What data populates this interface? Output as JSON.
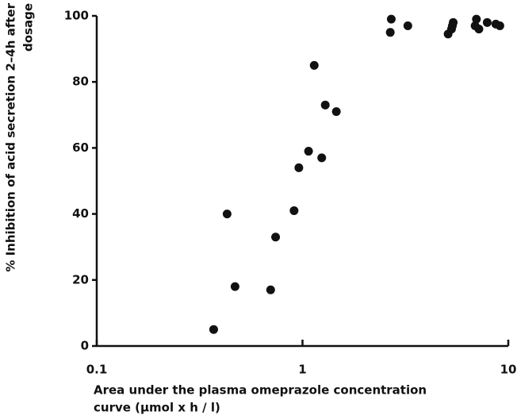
{
  "chart_data": {
    "type": "scatter",
    "x_label": [
      "Area under the plasma omeprazole concentration",
      "curve (μmol x h / l)"
    ],
    "y_label": [
      "% Inhibition of acid secretion 2–4h after",
      "dosage"
    ],
    "x_log": true,
    "xlim": [
      0.1,
      10
    ],
    "xticks": [
      0.1,
      1,
      10
    ],
    "ylim": [
      0,
      100
    ],
    "yticks": [
      0,
      20,
      40,
      60,
      80,
      100
    ],
    "color": "#111111",
    "series": [
      {
        "name": null,
        "color": "#111111",
        "x": [
          0.37,
          0.43,
          0.47,
          0.7,
          0.74,
          0.91,
          0.96,
          1.07,
          1.14,
          1.24,
          1.29,
          1.46,
          2.67,
          2.7,
          3.25,
          5.1,
          5.3,
          5.4,
          5.35,
          6.9,
          7.0,
          7.2,
          7.9,
          8.7,
          9.1
        ],
        "values": [
          5,
          40,
          18,
          17,
          33,
          41,
          54,
          59,
          85,
          57,
          73,
          71,
          95,
          99,
          97,
          94.5,
          96,
          98,
          97,
          97,
          99,
          96,
          98,
          97.5,
          97
        ]
      }
    ]
  }
}
